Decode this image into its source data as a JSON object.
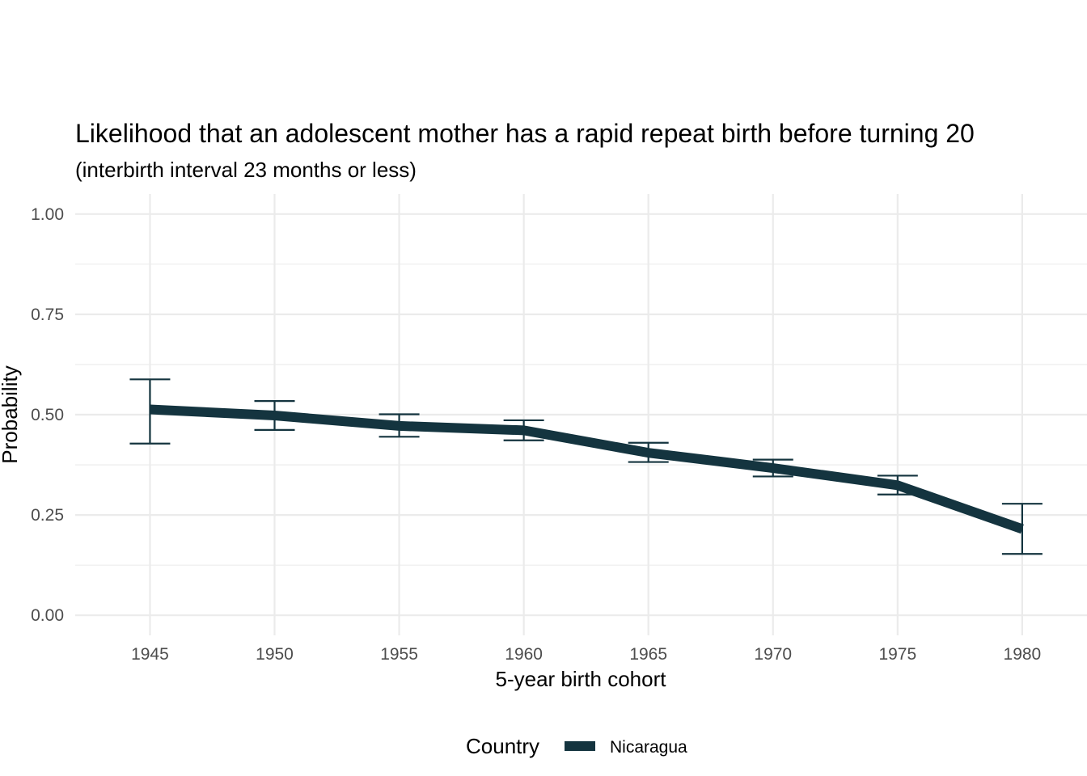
{
  "chart_data": {
    "type": "line",
    "title": "Likelihood that an adolescent mother has a rapid repeat birth before turning 20",
    "subtitle": "(interbirth interval 23 months or less)",
    "xlabel": "5-year birth cohort",
    "ylabel": "Probability",
    "x": [
      1945,
      1950,
      1955,
      1960,
      1965,
      1970,
      1975,
      1980
    ],
    "x_tick_labels": [
      "1945",
      "1950",
      "1955",
      "1960",
      "1965",
      "1970",
      "1975",
      "1980"
    ],
    "y_ticks": [
      0,
      0.25,
      0.5,
      0.75,
      1
    ],
    "y_tick_labels": [
      "0.00",
      "0.25",
      "0.50",
      "0.75",
      "1.00"
    ],
    "xlim": [
      1942,
      1982.6
    ],
    "ylim": [
      -0.05,
      1.05
    ],
    "grid": true,
    "legend": {
      "title": "Country",
      "position": "bottom"
    },
    "series": [
      {
        "name": "Nicaragua",
        "color": "#14343f",
        "values": [
          0.513,
          0.498,
          0.472,
          0.461,
          0.405,
          0.367,
          0.324,
          0.215
        ],
        "ci_lower": [
          0.428,
          0.462,
          0.445,
          0.436,
          0.382,
          0.346,
          0.301,
          0.153
        ],
        "ci_upper": [
          0.588,
          0.534,
          0.501,
          0.486,
          0.43,
          0.388,
          0.348,
          0.278
        ]
      }
    ]
  }
}
